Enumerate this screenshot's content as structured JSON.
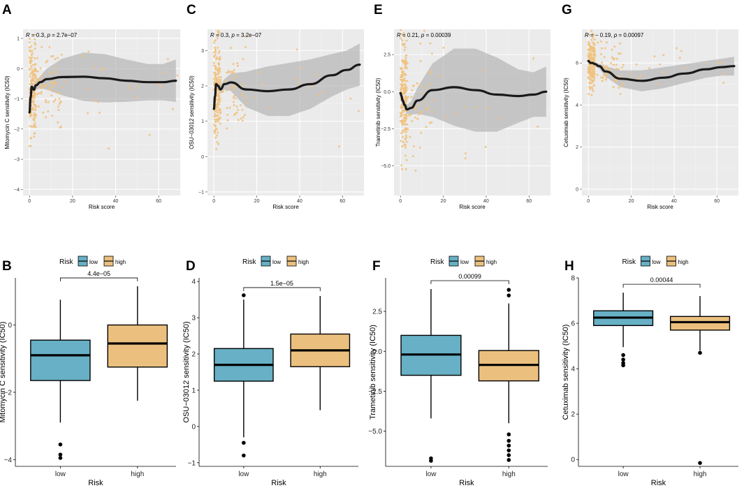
{
  "colors": {
    "low": "#67b0c5",
    "high": "#ebc07f",
    "point": "#f0c27f",
    "smooth": "#1a1a1a",
    "band": "#b0b0b0",
    "panel_bg": "#ebebeb"
  },
  "chart_data": [
    {
      "panel": "A",
      "type": "scatter",
      "ylabel": "Mitomycin C sensitivity (IC50)",
      "xlabel": "Risk score",
      "xlim": [
        -3,
        70
      ],
      "ylim": [
        -4.2,
        1.3
      ],
      "xticks": [
        0,
        20,
        40,
        60
      ],
      "yticks": [
        -4,
        -3,
        -2,
        -1,
        0,
        1
      ],
      "corr": {
        "R": "0.3",
        "p": "2.7e−07"
      },
      "smooth_x": [
        0,
        0.5,
        1,
        2,
        3,
        5,
        8,
        15,
        25,
        35,
        45,
        55,
        62,
        68
      ],
      "smooth_y": [
        -1.45,
        -0.95,
        -0.6,
        -0.7,
        -0.55,
        -0.45,
        -0.35,
        -0.28,
        -0.27,
        -0.32,
        -0.4,
        -0.45,
        -0.45,
        -0.4
      ],
      "band_w": [
        0.35,
        0.25,
        0.18,
        0.15,
        0.15,
        0.2,
        0.35,
        0.6,
        0.8,
        0.8,
        0.7,
        0.6,
        0.6,
        0.7
      ],
      "pt_seed": 11,
      "pt_center": -0.6,
      "pt_spread": 0.75
    },
    {
      "panel": "C",
      "type": "scatter",
      "ylabel": "OSU−03012 sensitivity (IC50)",
      "xlabel": "Risk score",
      "xlim": [
        -3,
        70
      ],
      "ylim": [
        -1.1,
        3.6
      ],
      "xticks": [
        0,
        20,
        40,
        60
      ],
      "yticks": [
        -1,
        0,
        1,
        2,
        3
      ],
      "corr": {
        "R": "0.3",
        "p": "3.2e−07"
      },
      "smooth_x": [
        0,
        0.5,
        1,
        2,
        3,
        5,
        8,
        15,
        25,
        35,
        45,
        55,
        62,
        68
      ],
      "smooth_y": [
        1.35,
        1.7,
        2.05,
        2.0,
        1.9,
        2.05,
        2.1,
        1.9,
        1.85,
        1.9,
        2.05,
        2.3,
        2.45,
        2.6
      ],
      "band_w": [
        0.3,
        0.2,
        0.15,
        0.12,
        0.12,
        0.15,
        0.25,
        0.5,
        0.7,
        0.75,
        0.7,
        0.6,
        0.55,
        0.6
      ],
      "pt_seed": 23,
      "pt_center": 1.9,
      "pt_spread": 0.75
    },
    {
      "panel": "E",
      "type": "scatter",
      "ylabel": "Trametinib sensitivity (IC50)",
      "xlabel": "Risk score",
      "xlim": [
        -3,
        70
      ],
      "ylim": [
        -7.0,
        4.2
      ],
      "xticks": [
        0,
        20,
        40,
        60
      ],
      "yticks": [
        -5.0,
        -2.5,
        0.0,
        2.5
      ],
      "ytick_labels": [
        "−5.0",
        "−2.5",
        "0.0",
        "2.5"
      ],
      "corr": {
        "R": "0.21",
        "p": "0.00039"
      },
      "smooth_x": [
        0,
        0.5,
        1,
        2,
        3,
        5,
        8,
        15,
        25,
        35,
        45,
        55,
        62,
        68
      ],
      "smooth_y": [
        -0.1,
        -0.3,
        -0.6,
        -0.9,
        -1.2,
        -1.1,
        -0.6,
        0.1,
        0.3,
        0.1,
        -0.2,
        -0.3,
        -0.2,
        0.0
      ],
      "band_w": [
        0.5,
        0.4,
        0.3,
        0.3,
        0.3,
        0.45,
        0.9,
        1.8,
        2.6,
        2.8,
        2.5,
        1.8,
        1.5,
        1.7
      ],
      "pt_seed": 37,
      "pt_center": -0.6,
      "pt_spread": 1.9
    },
    {
      "panel": "G",
      "type": "scatter",
      "ylabel": "Cetuximab sensitivity (IC50)",
      "xlabel": "Risk score",
      "xlim": [
        -3,
        70
      ],
      "ylim": [
        -0.3,
        7.6
      ],
      "xticks": [
        0,
        20,
        40,
        60
      ],
      "yticks": [
        0,
        2,
        4,
        6
      ],
      "corr": {
        "R": "− 0.19",
        "p": "0.00097"
      },
      "smooth_x": [
        0,
        0.5,
        1,
        2,
        3,
        5,
        8,
        15,
        25,
        35,
        45,
        55,
        62,
        68
      ],
      "smooth_y": [
        6.1,
        6.05,
        6.0,
        6.0,
        5.95,
        5.85,
        5.6,
        5.25,
        5.15,
        5.3,
        5.5,
        5.7,
        5.8,
        5.85
      ],
      "band_w": [
        0.2,
        0.15,
        0.12,
        0.1,
        0.1,
        0.12,
        0.25,
        0.4,
        0.5,
        0.5,
        0.45,
        0.4,
        0.4,
        0.45
      ],
      "pt_seed": 53,
      "pt_center": 5.9,
      "pt_spread": 0.6
    },
    {
      "panel": "B",
      "type": "box",
      "ylabel": "Mitomycin C sensitivity (IC50)",
      "xlabel": "Risk",
      "legend_title": "Risk",
      "legend": [
        "low",
        "high"
      ],
      "categories": [
        "low",
        "high"
      ],
      "ylim": [
        -4.2,
        1.4
      ],
      "yticks": [
        -4,
        -2,
        0
      ],
      "ytick_labels": [
        "−4",
        "−2",
        "0"
      ],
      "pvalue": "4.4e−05",
      "boxes": [
        {
          "min": -2.9,
          "q1": -1.65,
          "median": -0.9,
          "q3": -0.45,
          "max": 0.75,
          "outliers": [
            -3.55,
            -3.85,
            -3.95
          ]
        },
        {
          "min": -2.25,
          "q1": -1.25,
          "median": -0.55,
          "q3": 0.0,
          "max": 1.15,
          "outliers": []
        }
      ]
    },
    {
      "panel": "D",
      "type": "box",
      "ylabel": "OSU−03012 sensitivity (IC50)",
      "xlabel": "Risk",
      "legend_title": "Risk",
      "legend": [
        "low",
        "high"
      ],
      "categories": [
        "low",
        "high"
      ],
      "ylim": [
        -1.1,
        4.1
      ],
      "yticks": [
        -1,
        0,
        1,
        2,
        3,
        4
      ],
      "ytick_labels": [
        "−1",
        "0",
        "1",
        "2",
        "3",
        "4"
      ],
      "pvalue": "1.5e−05",
      "boxes": [
        {
          "min": -0.3,
          "q1": 1.25,
          "median": 1.7,
          "q3": 2.15,
          "max": 3.5,
          "outliers": [
            3.62,
            -0.45,
            -0.8
          ]
        },
        {
          "min": 0.45,
          "q1": 1.65,
          "median": 2.1,
          "q3": 2.55,
          "max": 3.6,
          "outliers": []
        }
      ]
    },
    {
      "panel": "F",
      "type": "box",
      "ylabel": "Trametinib sensitivity (IC50)",
      "xlabel": "Risk",
      "legend_title": "Risk",
      "legend": [
        "low",
        "high"
      ],
      "categories": [
        "low",
        "high"
      ],
      "ylim": [
        -7.2,
        4.6
      ],
      "yticks": [
        -5.0,
        -2.5,
        0.0,
        2.5
      ],
      "ytick_labels": [
        "−5.0",
        "−2.5",
        "0.0",
        "2.5"
      ],
      "pvalue": "0.00099",
      "boxes": [
        {
          "min": -4.2,
          "q1": -1.5,
          "median": -0.2,
          "q3": 1.0,
          "max": 3.9,
          "outliers": [
            -6.7,
            -6.85
          ]
        },
        {
          "min": -4.5,
          "q1": -1.85,
          "median": -0.85,
          "q3": 0.05,
          "max": 3.0,
          "outliers": [
            3.5,
            3.85,
            -5.2,
            -5.6,
            -5.9,
            -6.2,
            -6.5,
            -6.8
          ]
        }
      ]
    },
    {
      "panel": "H",
      "type": "box",
      "ylabel": "Cetuximab sensitivity (IC50)",
      "xlabel": "Risk",
      "legend_title": "Risk",
      "legend": [
        "low",
        "high"
      ],
      "categories": [
        "low",
        "high"
      ],
      "ylim": [
        -0.3,
        8.0
      ],
      "yticks": [
        0,
        2,
        4,
        6,
        8
      ],
      "ytick_labels": [
        "0",
        "2",
        "4",
        "6",
        "8"
      ],
      "pvalue": "0.00044",
      "boxes": [
        {
          "min": 4.95,
          "q1": 5.9,
          "median": 6.25,
          "q3": 6.55,
          "max": 7.35,
          "outliers": [
            4.6,
            4.4,
            4.25,
            4.15
          ]
        },
        {
          "min": 4.8,
          "q1": 5.7,
          "median": 6.05,
          "q3": 6.3,
          "max": 7.2,
          "outliers": [
            4.7,
            -0.15
          ]
        }
      ]
    }
  ]
}
